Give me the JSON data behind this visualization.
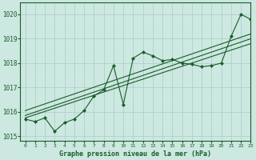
{
  "bg_color": "#cce8e0",
  "grid_color": "#aacccc",
  "line_color": "#1a5c2a",
  "title": "Graphe pression niveau de la mer (hPa)",
  "xlim": [
    -0.5,
    23
  ],
  "ylim": [
    1014.8,
    1020.5
  ],
  "yticks": [
    1015,
    1016,
    1017,
    1018,
    1019,
    1020
  ],
  "xticks": [
    0,
    1,
    2,
    3,
    4,
    5,
    6,
    7,
    8,
    9,
    10,
    11,
    12,
    13,
    14,
    15,
    16,
    17,
    18,
    19,
    20,
    21,
    22,
    23
  ],
  "series": [
    {
      "x": [
        0,
        1,
        2,
        3,
        4,
        5,
        6,
        7,
        8,
        9,
        10,
        11,
        12,
        13,
        14,
        15,
        16,
        17,
        18,
        19,
        20,
        21,
        22,
        23
      ],
      "y": [
        1015.7,
        1015.6,
        1015.75,
        1015.2,
        1015.55,
        1015.7,
        1016.05,
        1016.65,
        1016.9,
        1017.9,
        1016.3,
        1018.2,
        1018.45,
        1018.3,
        1018.1,
        1018.15,
        1018.0,
        1017.95,
        1017.85,
        1017.9,
        1018.0,
        1019.1,
        1020.0,
        1019.8
      ],
      "marker": true
    },
    {
      "x": [
        0,
        23
      ],
      "y": [
        1016.05,
        1019.2
      ],
      "marker": false
    },
    {
      "x": [
        0,
        23
      ],
      "y": [
        1015.85,
        1019.0
      ],
      "marker": false
    },
    {
      "x": [
        0,
        23
      ],
      "y": [
        1015.75,
        1018.8
      ],
      "marker": false
    }
  ]
}
